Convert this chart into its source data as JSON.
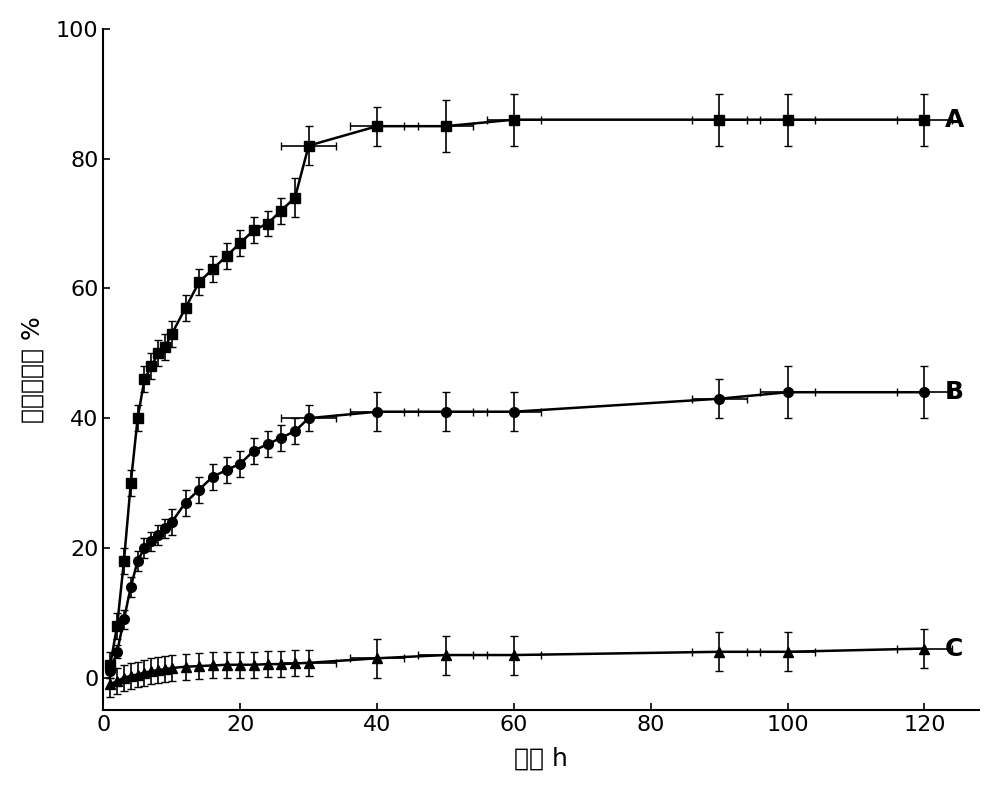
{
  "series_A": {
    "x": [
      1,
      2,
      3,
      4,
      5,
      6,
      7,
      8,
      9,
      10,
      12,
      14,
      16,
      18,
      20,
      22,
      24,
      26,
      28,
      30,
      40,
      50,
      60,
      90,
      100,
      120
    ],
    "y": [
      2,
      8,
      18,
      30,
      40,
      46,
      48,
      50,
      51,
      53,
      57,
      61,
      63,
      65,
      67,
      69,
      70,
      72,
      74,
      82,
      85,
      85,
      86,
      86,
      86,
      86
    ],
    "yerr": [
      2,
      2,
      2,
      2,
      2,
      2,
      2,
      2,
      2,
      2,
      2,
      2,
      2,
      2,
      2,
      2,
      2,
      2,
      3,
      3,
      3,
      4,
      4,
      4,
      4,
      4
    ],
    "label": "A",
    "marker": "s"
  },
  "series_B": {
    "x": [
      1,
      2,
      3,
      4,
      5,
      6,
      7,
      8,
      9,
      10,
      12,
      14,
      16,
      18,
      20,
      22,
      24,
      26,
      28,
      30,
      40,
      50,
      60,
      90,
      100,
      120
    ],
    "y": [
      1,
      4,
      9,
      14,
      18,
      20,
      21,
      22,
      23,
      24,
      27,
      29,
      31,
      32,
      33,
      35,
      36,
      37,
      38,
      40,
      41,
      41,
      41,
      43,
      44,
      44
    ],
    "yerr": [
      1,
      1,
      1.5,
      1.5,
      1.5,
      1.5,
      1.5,
      1.5,
      1.5,
      2,
      2,
      2,
      2,
      2,
      2,
      2,
      2,
      2,
      2,
      2,
      3,
      3,
      3,
      3,
      4,
      4
    ],
    "label": "B",
    "marker": "o"
  },
  "series_C": {
    "x": [
      1,
      2,
      3,
      4,
      5,
      6,
      7,
      8,
      9,
      10,
      12,
      14,
      16,
      18,
      20,
      22,
      24,
      26,
      28,
      30,
      40,
      50,
      60,
      90,
      100,
      120
    ],
    "y": [
      -1,
      -0.5,
      0,
      0.3,
      0.5,
      0.8,
      1.0,
      1.2,
      1.3,
      1.5,
      1.7,
      1.8,
      1.9,
      2.0,
      2.0,
      2.0,
      2.1,
      2.1,
      2.2,
      2.3,
      3.0,
      3.5,
      3.5,
      4.0,
      4.0,
      4.5
    ],
    "yerr": [
      2,
      2,
      2,
      2,
      2,
      2,
      2,
      2,
      2,
      2,
      2,
      2,
      2,
      2,
      2,
      2,
      2,
      2,
      2,
      2,
      3,
      3,
      3,
      3,
      3,
      3
    ],
    "label": "C",
    "marker": "^"
  },
  "xlabel": "时间 h",
  "ylabel": "释药百分率 %",
  "xlim": [
    0,
    128
  ],
  "ylim": [
    -5,
    100
  ],
  "xticks": [
    0,
    20,
    40,
    60,
    80,
    100,
    120
  ],
  "yticks": [
    0,
    20,
    40,
    60,
    80,
    100
  ],
  "label_fontsize": 18,
  "tick_fontsize": 16,
  "annotation_fontsize": 18,
  "background_color": "#ffffff",
  "line_color": "#000000",
  "marker_size": 7,
  "line_width": 1.8,
  "capsize": 3,
  "elinewidth": 1.2,
  "xerr_late": [
    5,
    5,
    5,
    5,
    5
  ]
}
